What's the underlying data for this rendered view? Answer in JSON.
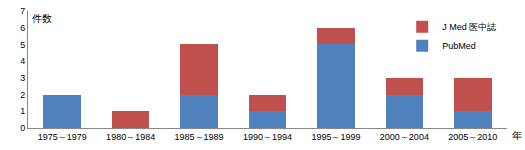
{
  "chart_data": {
    "type": "bar",
    "stacked": true,
    "xlabel": "年",
    "ylabel": "件数",
    "categories": [
      "1975～1979",
      "1980～1984",
      "1985～1989",
      "1990～1994",
      "1995～1999",
      "2000～2004",
      "2005～2010"
    ],
    "series": [
      {
        "name": "PubMed",
        "color": "#4f81bd",
        "values": [
          2,
          0,
          2,
          1,
          5,
          2,
          1
        ]
      },
      {
        "name": "J Med 医中誌",
        "color": "#c0504d",
        "values": [
          0,
          1,
          3,
          1,
          1,
          1,
          2
        ]
      }
    ],
    "ylim": [
      0,
      7
    ],
    "yticks": [
      0,
      1,
      2,
      3,
      4,
      5,
      6,
      7
    ],
    "grid": false,
    "legend": "top right"
  }
}
